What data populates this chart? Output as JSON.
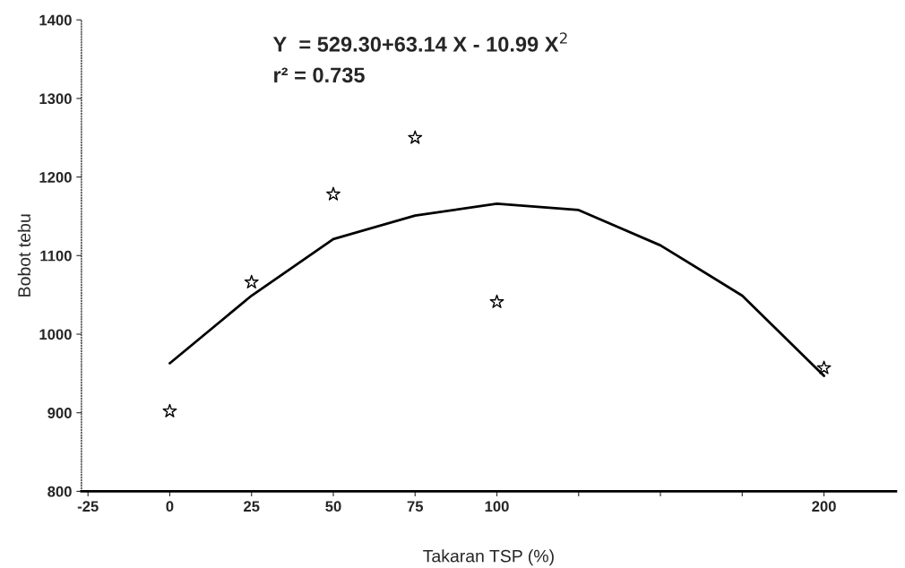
{
  "chart_data": {
    "type": "scatter",
    "xlabel": "Takaran TSP (%)",
    "ylabel": "Bobot tebu",
    "annotations": [
      "Y  = 529.30+63.14 X - 10.99 X$^{2}$",
      "r² = 0.735"
    ],
    "xlim": [
      -27,
      222
    ],
    "ylim": [
      800,
      1400
    ],
    "xticks": [
      -25,
      0,
      25,
      50,
      75,
      100,
      {
        "value": 125,
        "label": null
      },
      {
        "value": 150,
        "label": null
      },
      {
        "value": 175,
        "label": null
      },
      200
    ],
    "yticks": [
      800,
      900,
      1000,
      1100,
      1200,
      1300,
      1400
    ],
    "grid": false,
    "legend": false,
    "series": [
      {
        "color": "#000000",
        "marker": "star",
        "x": [
          0,
          25,
          50,
          75,
          100,
          200
        ],
        "values": [
          902,
          1066,
          1178,
          1250,
          1041,
          957
        ]
      },
      {
        "type": "line",
        "color": "#000000",
        "marker": "none",
        "line_style": "solid",
        "x": [
          0,
          25,
          50,
          75,
          100,
          125,
          150,
          175,
          200
        ],
        "values": [
          963,
          1049,
          1121,
          1151,
          1166,
          1158,
          1113,
          1049,
          947
        ]
      }
    ]
  }
}
